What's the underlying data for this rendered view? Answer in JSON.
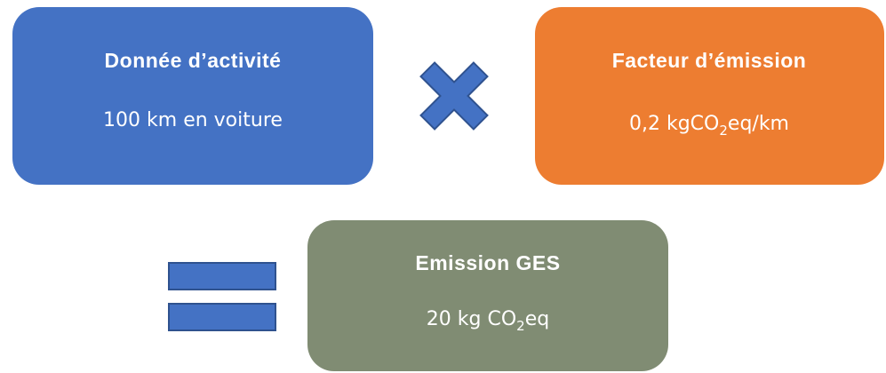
{
  "nodes": [
    {
      "title": "Donnée d’activité",
      "text": [
        "100 km en voiture"
      ]
    },
    {
      "title": "Facteur d’émission",
      "text": [
        "0,2 kgCO",
        "2",
        "eq/km"
      ]
    },
    {
      "title": "Emission GES",
      "text": [
        "20 kg CO",
        "2",
        "eq"
      ]
    }
  ]
}
